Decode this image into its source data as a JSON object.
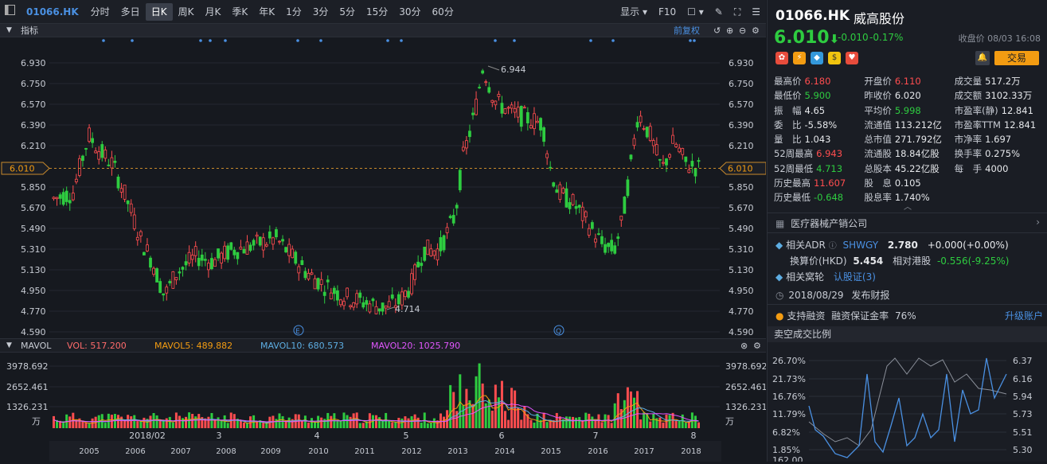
{
  "toolbar": {
    "code": "01066.HK",
    "periods": [
      "分时",
      "多日",
      "日K",
      "周K",
      "月K",
      "季K",
      "年K",
      "1分",
      "3分",
      "5分",
      "15分",
      "30分",
      "60分"
    ],
    "active_period": "日K",
    "display_label": "显示",
    "f10_label": "F10"
  },
  "indicator_bar": {
    "label": "指标",
    "restore_label": "前复权"
  },
  "price_chart": {
    "y_ticks": [
      "6.930",
      "6.750",
      "6.570",
      "6.390",
      "6.210",
      "6.010",
      "5.850",
      "5.670",
      "5.490",
      "5.310",
      "5.130",
      "4.950",
      "4.770",
      "4.590"
    ],
    "current_price": "6.010",
    "high_label": "6.944",
    "low_label": "4.714",
    "event_e": "E",
    "event_q": "Q"
  },
  "volume_bar": {
    "label": "MAVOL",
    "vol": "VOL: 517.200",
    "mavol5": "MAVOL5: 489.882",
    "mavol10": "MAVOL10: 680.573",
    "mavol20": "MAVOL20: 1025.790"
  },
  "volume_chart": {
    "y_ticks": [
      "3978.692",
      "2652.461",
      "1326.231"
    ],
    "unit": "万",
    "month_labels": [
      "2018/02",
      "3",
      "4",
      "5",
      "6",
      "7",
      "8"
    ],
    "year_labels": [
      "2005",
      "2006",
      "2007",
      "2008",
      "2009",
      "2010",
      "2011",
      "2012",
      "2013",
      "2014",
      "2015",
      "2016",
      "2017",
      "2018"
    ]
  },
  "quote": {
    "code": "01066.HK",
    "name": "威高股份",
    "price": "6.010",
    "change": "-0.010",
    "change_pct": "-0.17%",
    "close_info": "收盘价 08/03 16:08",
    "trade_label": "交易"
  },
  "stats": [
    [
      {
        "l": "最高价",
        "v": "6.180",
        "c": "red"
      },
      {
        "l": "开盘价",
        "v": "6.110",
        "c": "red"
      },
      {
        "l": "成交量",
        "v": "517.2万",
        "c": "white"
      }
    ],
    [
      {
        "l": "最低价",
        "v": "5.900",
        "c": "green"
      },
      {
        "l": "昨收价",
        "v": "6.020",
        "c": "white"
      },
      {
        "l": "成交额",
        "v": "3102.33万",
        "c": "white"
      }
    ],
    [
      {
        "l": "振　幅",
        "v": "4.65",
        "c": "white"
      },
      {
        "l": "平均价",
        "v": "5.998",
        "c": "green"
      },
      {
        "l": "市盈率(静)",
        "v": "12.841",
        "c": "white"
      }
    ],
    [
      {
        "l": "委　比",
        "v": "-5.58%",
        "c": "white"
      },
      {
        "l": "流通值",
        "v": "113.212亿",
        "c": "white"
      },
      {
        "l": "市盈率TTM",
        "v": "12.841",
        "c": "white"
      }
    ],
    [
      {
        "l": "量　比",
        "v": "1.043",
        "c": "white"
      },
      {
        "l": "总市值",
        "v": "271.792亿",
        "c": "white"
      },
      {
        "l": "市净率",
        "v": "1.697",
        "c": "white"
      }
    ],
    [
      {
        "l": "52周最高",
        "v": "6.943",
        "c": "red"
      },
      {
        "l": "流通股",
        "v": "18.84亿股",
        "c": "white"
      },
      {
        "l": "换手率",
        "v": "0.275%",
        "c": "white"
      }
    ],
    [
      {
        "l": "52周最低",
        "v": "4.713",
        "c": "green"
      },
      {
        "l": "总股本",
        "v": "45.22亿股",
        "c": "white"
      },
      {
        "l": "每　手",
        "v": "4000",
        "c": "white"
      }
    ],
    [
      {
        "l": "历史最高",
        "v": "11.607",
        "c": "red"
      },
      {
        "l": "股　息",
        "v": "0.105",
        "c": "white"
      },
      {
        "l": "",
        "v": "",
        "c": "white"
      }
    ],
    [
      {
        "l": "历史最低",
        "v": "-0.648",
        "c": "green"
      },
      {
        "l": "股息率",
        "v": "1.740%",
        "c": "white"
      },
      {
        "l": "",
        "v": "",
        "c": "white"
      }
    ]
  ],
  "sector": "医疗器械产销公司",
  "adr": {
    "label": "相关ADR",
    "symbol": "SHWGY",
    "price": "2.780",
    "change": "+0.000(+0.00%)",
    "conv_label": "换算价(HKD)",
    "conv": "5.454",
    "rel_label": "相对港股",
    "rel": "-0.556(-9.25%)"
  },
  "warrant": {
    "label": "相关窝轮",
    "link": "认股证(3)"
  },
  "report": {
    "date": "2018/08/29",
    "text": "发布财报"
  },
  "margin": {
    "text": "支持融资",
    "rate_label": "融资保证金率",
    "rate": "76%",
    "upgrade": "升级账户"
  },
  "short_ratio": {
    "title": "卖空成交比例",
    "left_ticks": [
      "26.70%",
      "21.73%",
      "16.76%",
      "11.79%",
      "6.82%",
      "1.85%",
      "162.00"
    ],
    "right_ticks": [
      "6.37",
      "6.16",
      "5.94",
      "5.73",
      "5.51",
      "5.30"
    ]
  },
  "colors": {
    "up": "#ff4d4f",
    "down": "#2ecc40",
    "accent": "#f39c12",
    "link": "#4a90e2"
  }
}
